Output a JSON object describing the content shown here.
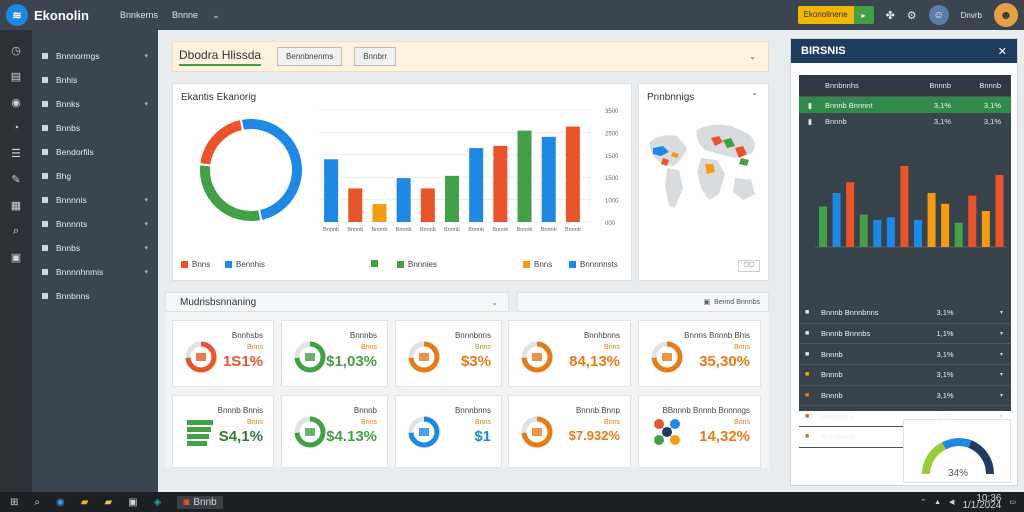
{
  "app": {
    "logo_text": "Ekonolin",
    "nav": [
      "Bnnkerns",
      "Bnnne"
    ],
    "upgrade_label": "Ekonolinene",
    "user_label": "Dnvrb"
  },
  "sidebar": {
    "items": [
      {
        "label": "Bnnnormgs",
        "chevron": true
      },
      {
        "label": "Bnhis",
        "chevron": false
      },
      {
        "label": "Bnnks",
        "chevron": true
      },
      {
        "label": "Bnnbs",
        "chevron": false
      },
      {
        "label": "Bendorfils",
        "chevron": false
      },
      {
        "label": "Bhg",
        "chevron": false
      },
      {
        "label": "Bnnnnis",
        "chevron": true
      },
      {
        "label": "Bnnnnts",
        "chevron": true
      },
      {
        "label": "Bnnbs",
        "chevron": true
      },
      {
        "label": "Bnnnnhnmis",
        "chevron": true
      },
      {
        "label": "Bnnbnns",
        "chevron": false
      }
    ]
  },
  "header": {
    "title": "Dbodra Hlissda",
    "buttons": [
      "Bennbnenms",
      "Bnnbrr"
    ]
  },
  "chart_panel": {
    "title": "Ekantis Ekanorig",
    "legend": [
      {
        "label": "Bnns",
        "color": "#e8552a"
      },
      {
        "label": "Bennhis",
        "color": "#1e88e5"
      },
      {
        "label": "",
        "color": "#43a047"
      },
      {
        "label": "Bnnnies",
        "color": "#43a047"
      },
      {
        "label": "Bnns",
        "color": "#f39c12"
      },
      {
        "label": "Bnnnnnsts",
        "color": "#1e88e5"
      }
    ]
  },
  "chart_data": {
    "type": "bar",
    "donut": [
      {
        "name": "",
        "value": 50,
        "color": "#1e88e5"
      },
      {
        "name": "",
        "value": 30,
        "color": "#43a047"
      },
      {
        "name": "",
        "value": 20,
        "color": "#e8552a"
      }
    ],
    "categories": [
      "Bnnnb",
      "Bnnnb",
      "Bnnnb",
      "Bnnnb",
      "Bnnnb",
      "Bnnnb",
      "Bnnnb",
      "Bnnnb",
      "Bnnnb",
      "Bnnnb",
      "Bnnnb"
    ],
    "bars": [
      {
        "value": 1400,
        "color": "#1e88e5"
      },
      {
        "value": 750,
        "color": "#e8552a"
      },
      {
        "value": 400,
        "color": "#f39c12"
      },
      {
        "value": 980,
        "color": "#1e88e5"
      },
      {
        "value": 750,
        "color": "#e8552a"
      },
      {
        "value": 1030,
        "color": "#43a047"
      },
      {
        "value": 1650,
        "color": "#1e88e5"
      },
      {
        "value": 1700,
        "color": "#e8552a"
      },
      {
        "value": 2040,
        "color": "#43a047"
      },
      {
        "value": 1900,
        "color": "#1e88e5"
      },
      {
        "value": 2130,
        "color": "#e8552a"
      }
    ],
    "yticks": [
      "3500",
      "2500",
      "1500",
      "1500",
      "1000",
      "000"
    ],
    "ylim": [
      0,
      2500
    ]
  },
  "map_panel": {
    "title": "Pnnbnnigs"
  },
  "kpi": {
    "section_title": "Mudrisbsnnaning",
    "right_label": "Bennd Bnnnbs",
    "cards": [
      {
        "label": "Bnnhsbs",
        "sub": "Bnns",
        "value": "1S1%",
        "value_color": "#e8552a",
        "icon": "donut-icon"
      },
      {
        "label": "Bnnnbs",
        "sub": "Bnns",
        "value": "$1,03%",
        "value_color": "#43a047",
        "icon": "donut-icon"
      },
      {
        "label": "Bnnnbnns",
        "sub": "Bnns",
        "value": "$3%",
        "value_color": "#e57b19",
        "icon": "donut-icon"
      },
      {
        "label": "Bnnhbnns",
        "sub": "Bnns",
        "value": "84,13%",
        "value_color": "#e57b19",
        "icon": "donut-icon"
      },
      {
        "label": "Bnnns Bnnnb Bhis",
        "sub": "Bnns",
        "value": "35,30%",
        "value_color": "#e57b19",
        "icon": "donut-icon"
      },
      {
        "label": "Bnnnb Bnnis",
        "sub": "Bnns",
        "value": "S4,1%",
        "value_color": "#2e7d32",
        "icon": "bars-icon"
      },
      {
        "label": "Bnnnb",
        "sub": "Bnns",
        "value": "$4.13%",
        "value_color": "#43a047",
        "icon": "donut-icon"
      },
      {
        "label": "Bnnnbnns",
        "sub": "Bnns",
        "value": "$1",
        "value_color": "#1e88e5",
        "icon": "donut-icon"
      },
      {
        "label": "Bnnnb Bnnp",
        "sub": "Bnns",
        "value": "$7.932%",
        "value_color": "#e57b19",
        "icon": "donut-icon"
      },
      {
        "label": "BBnnnb Bnnnb Bnnnngs",
        "sub": "Bnns",
        "value": "14,32%",
        "value_color": "#e57b19",
        "icon": "network-icon"
      }
    ]
  },
  "right_panel": {
    "title": "BIRSNIS",
    "table_head": [
      "Bnnbnnhs",
      "Bnnnb",
      "Bnnnb"
    ],
    "rows": [
      {
        "name": "Bnnnb Bnnnnt",
        "v1": "3,1%",
        "v2": "3,1%",
        "style": "green"
      },
      {
        "name": "Bnnnb",
        "v1": "3,1%",
        "v2": "3,1%",
        "style": "dark"
      }
    ],
    "mini_bars": [
      {
        "value": 45,
        "color": "#43a047"
      },
      {
        "value": 60,
        "color": "#1e88e5"
      },
      {
        "value": 72,
        "color": "#e8552a"
      },
      {
        "value": 36,
        "color": "#43a047"
      },
      {
        "value": 30,
        "color": "#1e88e5"
      },
      {
        "value": 33,
        "color": "#1e88e5"
      },
      {
        "value": 90,
        "color": "#e8552a"
      },
      {
        "value": 30,
        "color": "#1e88e5"
      },
      {
        "value": 60,
        "color": "#f39c12"
      },
      {
        "value": 48,
        "color": "#f39c12"
      },
      {
        "value": 27,
        "color": "#43a047"
      },
      {
        "value": 57,
        "color": "#e8552a"
      },
      {
        "value": 40,
        "color": "#f39c12"
      },
      {
        "value": 80,
        "color": "#e8552a"
      }
    ],
    "list": [
      {
        "name": "Bnnnb Bnnnbnns",
        "value": "3,1%",
        "icon_color": "#e8e8e8"
      },
      {
        "name": "Bnnnb Bnnnbs",
        "value": "1,1%",
        "icon_color": "#e8e8e8"
      },
      {
        "name": "Bnnnb",
        "value": "3,1%",
        "icon_color": "#e8e8e8"
      },
      {
        "name": "Bnnnb",
        "value": "3,1%",
        "icon_color": "#f2b705"
      },
      {
        "name": "Bnnnb",
        "value": "3,1%",
        "icon_color": "#e57b19"
      },
      {
        "name": "Bnnnbnns",
        "value": "3,1%",
        "icon_color": "#e8552a"
      },
      {
        "name": "Bnnnbnns",
        "value": "3,1%",
        "icon_color": "#e8552a"
      }
    ],
    "gauge_value": "34%"
  },
  "taskbar": {
    "active_app": "Bnnb",
    "time": "10:36",
    "date": "1/1/2024"
  }
}
